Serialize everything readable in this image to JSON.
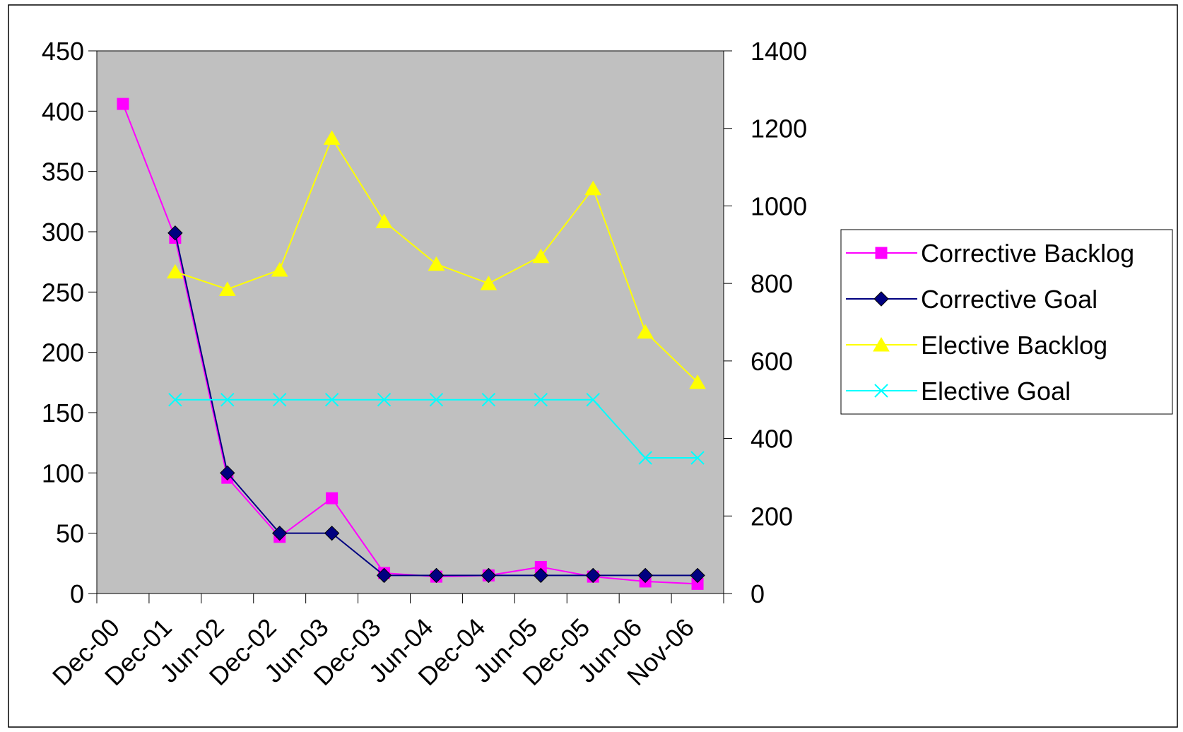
{
  "chart_data": {
    "type": "line",
    "title": "",
    "xlabel": "",
    "ylabel": "",
    "y2label": "",
    "categories": [
      "Dec-00",
      "Dec-01",
      "Jun-02",
      "Dec-02",
      "Jun-03",
      "Dec-03",
      "Jun-04",
      "Dec-04",
      "Jun-05",
      "Dec-05",
      "Jun-06",
      "Nov-06"
    ],
    "ylim": [
      0,
      450
    ],
    "y_ticks": [
      "0",
      "50",
      "100",
      "150",
      "200",
      "250",
      "300",
      "350",
      "400",
      "450"
    ],
    "y2lim": [
      0,
      1400
    ],
    "y2_ticks": [
      "0",
      "200",
      "400",
      "600",
      "800",
      "1000",
      "1200",
      "1400"
    ],
    "grid": false,
    "plot_background": "#c0c0c0",
    "legend_position": "right",
    "series": [
      {
        "name": "Corrective Backlog",
        "axis": "left",
        "color": "#ff00ff",
        "marker": "square",
        "values": [
          406,
          295,
          96,
          47,
          79,
          17,
          14,
          15,
          22,
          14,
          10,
          8
        ]
      },
      {
        "name": "Corrective Goal",
        "axis": "left",
        "color": "#000080",
        "marker": "diamond",
        "values": [
          null,
          299,
          100,
          50,
          50,
          15,
          15,
          15,
          15,
          15,
          15,
          15
        ]
      },
      {
        "name": "Elective Backlog",
        "axis": "right",
        "color": "#ffff00",
        "marker": "triangle",
        "values": [
          null,
          830,
          785,
          835,
          1175,
          960,
          850,
          800,
          870,
          1045,
          675,
          545
        ]
      },
      {
        "name": "Elective Goal",
        "axis": "right",
        "color": "#00ffff",
        "marker": "x",
        "values": [
          null,
          500,
          500,
          500,
          500,
          500,
          500,
          500,
          500,
          500,
          350,
          350
        ]
      }
    ]
  }
}
